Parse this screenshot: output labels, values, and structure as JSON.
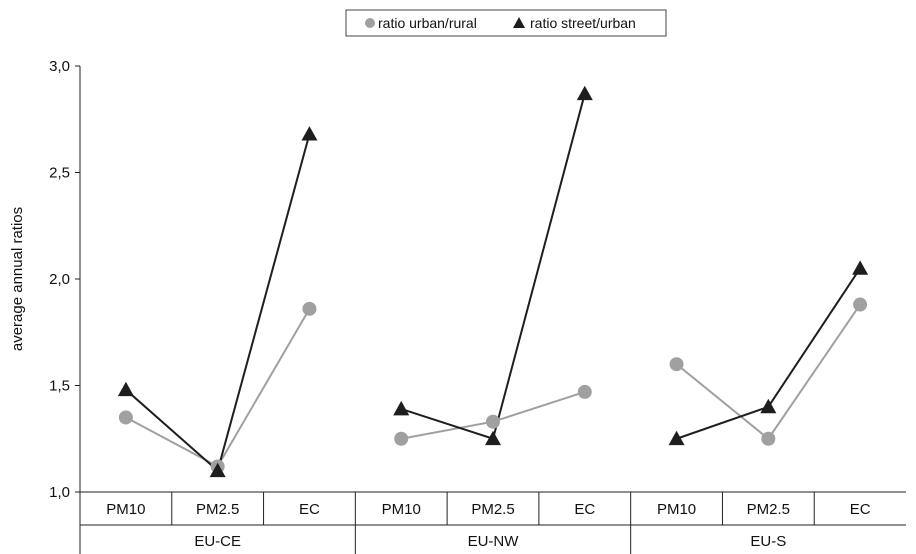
{
  "chart_data": {
    "type": "line",
    "ylabel": "average annual ratios",
    "ylim": [
      1.0,
      3.0
    ],
    "yticks": [
      "1,0",
      "1,5",
      "2,0",
      "2,5",
      "3,0"
    ],
    "ytick_values": [
      1.0,
      1.5,
      2.0,
      2.5,
      3.0
    ],
    "grid": false,
    "legend_position": "top-center",
    "groups": [
      {
        "name": "EU-CE",
        "categories": [
          "PM10",
          "PM2.5",
          "EC"
        ]
      },
      {
        "name": "EU-NW",
        "categories": [
          "PM10",
          "PM2.5",
          "EC"
        ]
      },
      {
        "name": "EU-S",
        "categories": [
          "PM10",
          "PM2.5",
          "EC"
        ]
      }
    ],
    "series": [
      {
        "name": "ratio urban/rural",
        "marker": "circle",
        "color": "#a0a0a0",
        "values": [
          [
            1.35,
            1.12,
            1.86
          ],
          [
            1.25,
            1.33,
            1.47
          ],
          [
            1.6,
            1.25,
            1.88
          ]
        ]
      },
      {
        "name": "ratio street/urban",
        "marker": "triangle",
        "color": "#1e1e1e",
        "values": [
          [
            1.48,
            1.1,
            2.68
          ],
          [
            1.39,
            1.25,
            2.87
          ],
          [
            1.25,
            1.4,
            2.05
          ]
        ]
      }
    ]
  }
}
